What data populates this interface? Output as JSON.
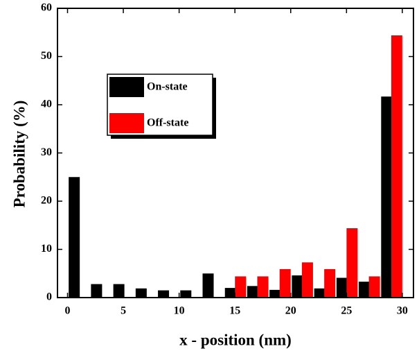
{
  "chart_data": {
    "type": "bar",
    "x_label": "x - position (nm)",
    "y_label": "Probability (%)",
    "xlim": [
      -0.9,
      31
    ],
    "ylim": [
      0,
      60
    ],
    "xticks": [
      0,
      5,
      10,
      15,
      20,
      25,
      30
    ],
    "yticks": [
      0,
      10,
      20,
      30,
      40,
      50,
      60
    ],
    "grid": false,
    "legend": "upper left",
    "series": [
      {
        "name": "On-state",
        "color": "#000000",
        "x": [
          0.6,
          2.6,
          4.6,
          6.6,
          8.6,
          10.6,
          12.6,
          14.6,
          16.6,
          18.6,
          20.6,
          22.6,
          24.6,
          26.6,
          28.6
        ],
        "values": [
          25,
          2.8,
          2.8,
          1.9,
          1.5,
          1.5,
          5.0,
          2.0,
          2.4,
          1.6,
          4.6,
          1.9,
          4.1,
          3.3,
          41.7
        ]
      },
      {
        "name": "Off-state",
        "color": "#ff0000",
        "x": [
          15.5,
          17.5,
          19.5,
          21.5,
          23.5,
          25.5,
          27.5,
          29.5
        ],
        "values": [
          4.4,
          4.4,
          5.9,
          7.3,
          5.9,
          14.4,
          4.4,
          54.4
        ]
      }
    ]
  }
}
